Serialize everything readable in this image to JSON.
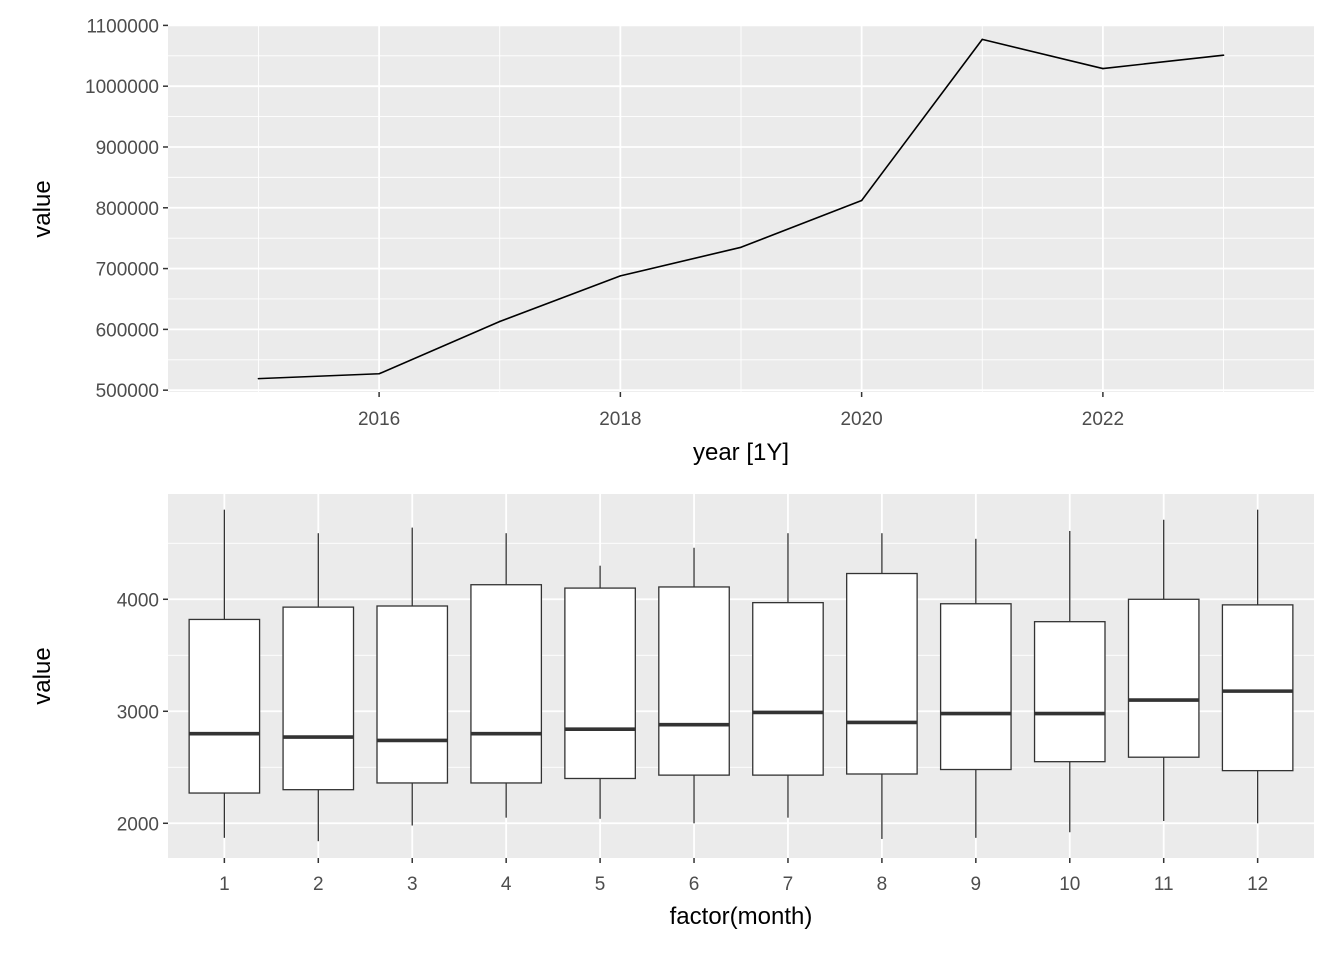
{
  "chart_data": [
    {
      "type": "line",
      "xlabel": "year [1Y]",
      "ylabel": "value",
      "x": [
        2015,
        2016,
        2017,
        2018,
        2019,
        2020,
        2021,
        2022,
        2023
      ],
      "y": [
        519000,
        527000,
        613000,
        688000,
        735000,
        812000,
        1077000,
        1029000,
        1051000
      ],
      "xlim": [
        2014.25,
        2023.75
      ],
      "ylim": [
        497000,
        1099000
      ],
      "x_ticks": [
        2016,
        2018,
        2020,
        2022
      ],
      "y_ticks": [
        500000,
        600000,
        700000,
        800000,
        900000,
        1000000,
        1100000
      ],
      "x_tick_labels": [
        "2016",
        "2018",
        "2020",
        "2022"
      ],
      "y_tick_labels": [
        "500000",
        "600000",
        "700000",
        "800000",
        "900000",
        "1000000",
        "1100000"
      ],
      "grid": true,
      "panel_color": "#ebebeb",
      "line_color": "#000000"
    },
    {
      "type": "box",
      "xlabel": "factor(month)",
      "ylabel": "value",
      "categories": [
        "1",
        "2",
        "3",
        "4",
        "5",
        "6",
        "7",
        "8",
        "9",
        "10",
        "11",
        "12"
      ],
      "boxes": [
        {
          "min": 1870,
          "q1": 2270,
          "median": 2800,
          "q3": 3820,
          "max": 4800
        },
        {
          "min": 1840,
          "q1": 2300,
          "median": 2770,
          "q3": 3930,
          "max": 4590
        },
        {
          "min": 1980,
          "q1": 2360,
          "median": 2740,
          "q3": 3940,
          "max": 4640
        },
        {
          "min": 2050,
          "q1": 2360,
          "median": 2800,
          "q3": 4130,
          "max": 4590
        },
        {
          "min": 2040,
          "q1": 2400,
          "median": 2840,
          "q3": 4100,
          "max": 4300
        },
        {
          "min": 2000,
          "q1": 2430,
          "median": 2880,
          "q3": 4110,
          "max": 4460
        },
        {
          "min": 2050,
          "q1": 2430,
          "median": 2990,
          "q3": 3970,
          "max": 4590
        },
        {
          "min": 1860,
          "q1": 2440,
          "median": 2900,
          "q3": 4230,
          "max": 4590
        },
        {
          "min": 1870,
          "q1": 2480,
          "median": 2980,
          "q3": 3960,
          "max": 4540
        },
        {
          "min": 1920,
          "q1": 2550,
          "median": 2980,
          "q3": 3800,
          "max": 4610
        },
        {
          "min": 2020,
          "q1": 2590,
          "median": 3100,
          "q3": 4000,
          "max": 4710
        },
        {
          "min": 2000,
          "q1": 2470,
          "median": 3180,
          "q3": 3950,
          "max": 4800
        }
      ],
      "ylim": [
        1690,
        4940
      ],
      "y_ticks": [
        2000,
        3000,
        4000
      ],
      "y_tick_labels": [
        "2000",
        "3000",
        "4000"
      ],
      "grid": true,
      "panel_color": "#ebebeb",
      "box_fill": "#ffffff",
      "box_stroke": "#333333"
    }
  ]
}
